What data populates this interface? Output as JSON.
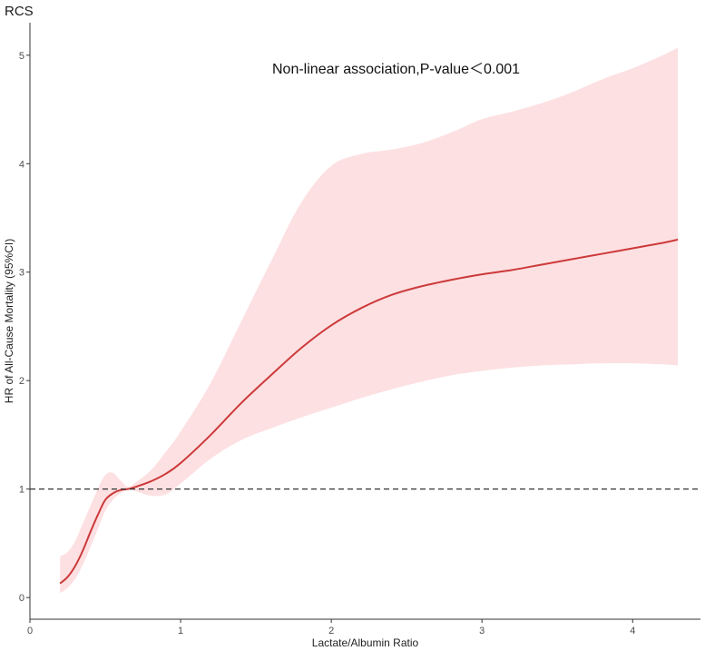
{
  "chart_data": {
    "type": "line",
    "title": "RCS",
    "annotation": "Non-linear association,P-value＜0.001",
    "xlabel": "Lactate/Albumin Ratio",
    "ylabel": "HR of All-Cause Mortality (95%CI)",
    "xlim": [
      0,
      4.45
    ],
    "ylim": [
      -0.2,
      5.3
    ],
    "xticks": [
      0,
      1,
      2,
      3,
      4
    ],
    "yticks": [
      0,
      1,
      2,
      3,
      4,
      5
    ],
    "reference_line": {
      "y": 1,
      "style": "dashed"
    },
    "grid": false,
    "colors": {
      "line": "#cc3a3a",
      "band": "#fde0e2",
      "reference": "#333333",
      "axis": "#333333"
    },
    "series": [
      {
        "x": [
          0.2,
          0.25,
          0.3,
          0.35,
          0.4,
          0.45,
          0.5,
          0.55,
          0.6,
          0.65,
          0.7,
          0.8,
          0.9,
          1.0,
          1.2,
          1.4,
          1.6,
          1.8,
          2.0,
          2.2,
          2.4,
          2.6,
          2.8,
          3.0,
          3.2,
          3.4,
          3.6,
          3.8,
          4.0,
          4.2,
          4.3
        ],
        "y": [
          0.13,
          0.19,
          0.29,
          0.43,
          0.6,
          0.76,
          0.9,
          0.96,
          0.99,
          1.0,
          1.02,
          1.07,
          1.14,
          1.24,
          1.5,
          1.79,
          2.05,
          2.3,
          2.51,
          2.67,
          2.79,
          2.87,
          2.93,
          2.98,
          3.02,
          3.07,
          3.12,
          3.17,
          3.22,
          3.27,
          3.3
        ],
        "lower": [
          0.04,
          0.09,
          0.17,
          0.3,
          0.46,
          0.63,
          0.8,
          0.9,
          0.96,
          1.0,
          0.98,
          0.94,
          0.95,
          1.05,
          1.28,
          1.45,
          1.56,
          1.66,
          1.75,
          1.84,
          1.92,
          1.99,
          2.05,
          2.09,
          2.12,
          2.14,
          2.15,
          2.16,
          2.16,
          2.15,
          2.14
        ],
        "upper": [
          0.38,
          0.42,
          0.52,
          0.68,
          0.84,
          1.0,
          1.13,
          1.15,
          1.08,
          1.02,
          1.06,
          1.17,
          1.34,
          1.53,
          1.98,
          2.54,
          3.1,
          3.64,
          3.98,
          4.09,
          4.13,
          4.19,
          4.29,
          4.41,
          4.48,
          4.56,
          4.66,
          4.78,
          4.88,
          5.0,
          5.07
        ]
      }
    ]
  }
}
